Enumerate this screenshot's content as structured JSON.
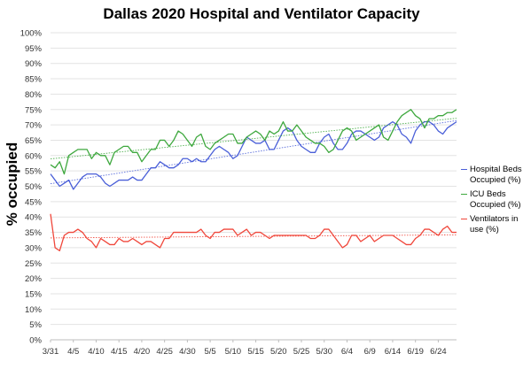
{
  "chart_data": {
    "type": "line",
    "title": "Dallas 2020 Hospital and Ventilator Capacity",
    "xlabel": "",
    "ylabel": "% occupied",
    "ylim": [
      0,
      100
    ],
    "yticks": [
      "0%",
      "5%",
      "10%",
      "15%",
      "20%",
      "25%",
      "30%",
      "35%",
      "40%",
      "45%",
      "50%",
      "55%",
      "60%",
      "65%",
      "70%",
      "75%",
      "80%",
      "85%",
      "90%",
      "95%",
      "100%"
    ],
    "xticks": [
      "3/31",
      "4/5",
      "4/10",
      "4/15",
      "4/20",
      "4/25",
      "4/30",
      "5/5",
      "5/10",
      "5/15",
      "5/20",
      "5/25",
      "5/30",
      "6/4",
      "6/9",
      "6/14",
      "6/19",
      "6/24"
    ],
    "n_points": 90,
    "grid": "horizontal",
    "trendlines": true,
    "legend_position": "right",
    "series": [
      {
        "name": "Hospital Beds Occupied (%)",
        "color": "#4a5fd8",
        "values": [
          54,
          52,
          50,
          51,
          52,
          49,
          51,
          53,
          54,
          54,
          54,
          53,
          51,
          50,
          51,
          52,
          52,
          52,
          53,
          52,
          52,
          54,
          56,
          56,
          58,
          57,
          56,
          56,
          57,
          59,
          59,
          58,
          59,
          58,
          58,
          60,
          62,
          63,
          62,
          61,
          59,
          60,
          63,
          66,
          65,
          64,
          64,
          65,
          62,
          62,
          65,
          68,
          69,
          68,
          65,
          63,
          62,
          61,
          61,
          64,
          66,
          67,
          64,
          62,
          62,
          64,
          67,
          68,
          68,
          67,
          66,
          65,
          66,
          69,
          70,
          71,
          70,
          67,
          66,
          64,
          68,
          70,
          71,
          71,
          70,
          68,
          67,
          69,
          70,
          71
        ]
      },
      {
        "name": "ICU Beds Occupied (%)",
        "color": "#3ea83e",
        "values": [
          57,
          56,
          58,
          54,
          60,
          61,
          62,
          62,
          62,
          59,
          61,
          60,
          60,
          57,
          61,
          62,
          63,
          63,
          61,
          61,
          58,
          60,
          62,
          62,
          65,
          65,
          63,
          65,
          68,
          67,
          65,
          63,
          66,
          67,
          63,
          62,
          64,
          65,
          66,
          67,
          67,
          64,
          64,
          66,
          67,
          68,
          67,
          65,
          68,
          67,
          68,
          71,
          68,
          68,
          70,
          68,
          66,
          65,
          64,
          64,
          63,
          61,
          62,
          65,
          68,
          69,
          68,
          65,
          66,
          67,
          68,
          69,
          70,
          66,
          65,
          68,
          71,
          73,
          74,
          75,
          73,
          72,
          69,
          72,
          72,
          73,
          73,
          74,
          74,
          75
        ]
      },
      {
        "name": "Ventilators in use (%)",
        "color": "#f0473b",
        "values": [
          41,
          30,
          29,
          34,
          35,
          35,
          36,
          35,
          33,
          32,
          30,
          33,
          32,
          31,
          31,
          33,
          32,
          32,
          33,
          32,
          31,
          32,
          32,
          31,
          30,
          33,
          33,
          35,
          35,
          35,
          35,
          35,
          35,
          36,
          34,
          33,
          35,
          35,
          36,
          36,
          36,
          34,
          35,
          36,
          34,
          35,
          35,
          34,
          33,
          34,
          34,
          34,
          34,
          34,
          34,
          34,
          34,
          33,
          33,
          34,
          36,
          36,
          34,
          32,
          30,
          31,
          34,
          34,
          32,
          33,
          34,
          32,
          33,
          34,
          34,
          34,
          33,
          32,
          31,
          31,
          33,
          34,
          36,
          36,
          35,
          34,
          36,
          37,
          35,
          35
        ]
      }
    ]
  }
}
